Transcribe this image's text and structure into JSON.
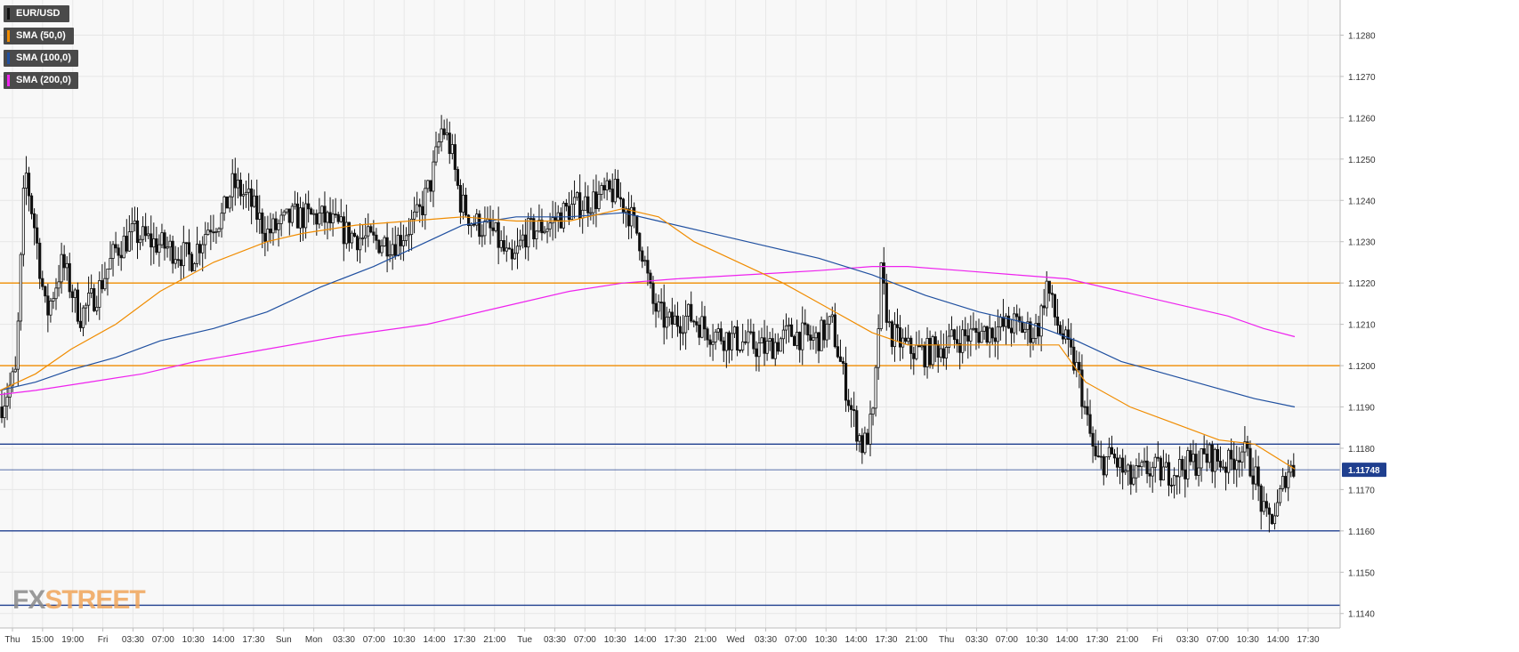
{
  "legend": [
    {
      "label": "EUR/USD",
      "color": "#111111"
    },
    {
      "label": "SMA (50,0)",
      "color": "#f08c00"
    },
    {
      "label": "SMA (100,0)",
      "color": "#2050a0"
    },
    {
      "label": "SMA (200,0)",
      "color": "#ee22ee"
    }
  ],
  "logo": {
    "part1": "FX",
    "part2": "STREET"
  },
  "chart_data": {
    "type": "candlestick",
    "symbol": "EUR/USD",
    "y_ticks": [
      "1.1280",
      "1.1270",
      "1.1260",
      "1.1250",
      "1.1240",
      "1.1230",
      "1.1220",
      "1.1210",
      "1.1200",
      "1.1190",
      "1.1180",
      "1.1170",
      "1.1160",
      "1.1150",
      "1.1140"
    ],
    "ylim": [
      1.11365,
      1.12885
    ],
    "x_ticks": [
      "Thu",
      "15:00",
      "19:00",
      "Fri",
      "03:30",
      "07:00",
      "10:30",
      "14:00",
      "17:30",
      "Sun",
      "Mon",
      "03:30",
      "07:00",
      "10:30",
      "14:00",
      "17:30",
      "21:00",
      "Tue",
      "03:30",
      "07:00",
      "10:30",
      "14:00",
      "17:30",
      "21:00",
      "Wed",
      "03:30",
      "07:00",
      "10:30",
      "14:00",
      "17:30",
      "21:00",
      "Thu",
      "03:30",
      "07:00",
      "10:30",
      "14:00",
      "17:30",
      "21:00",
      "Fri",
      "03:30",
      "07:00",
      "10:30",
      "14:00",
      "17:30"
    ],
    "last_price": "1.11748",
    "last_price_value": 1.11748,
    "levels": [
      {
        "value": 1.122,
        "color": "#f08c00",
        "style": "orange"
      },
      {
        "value": 1.12,
        "color": "#f08c00",
        "style": "orange"
      },
      {
        "value": 1.1181,
        "color": "#1f3f8f",
        "style": "blue"
      },
      {
        "value": 1.116,
        "color": "#1f3f8f",
        "style": "blue"
      },
      {
        "value": 1.1142,
        "color": "#1f3f8f",
        "style": "blue"
      }
    ],
    "price_path": [
      [
        0,
        1.119
      ],
      [
        18,
        1.1198
      ],
      [
        28,
        1.1248
      ],
      [
        40,
        1.1232
      ],
      [
        52,
        1.1212
      ],
      [
        70,
        1.1225
      ],
      [
        90,
        1.1212
      ],
      [
        110,
        1.1218
      ],
      [
        130,
        1.1228
      ],
      [
        150,
        1.1232
      ],
      [
        170,
        1.123
      ],
      [
        195,
        1.1228
      ],
      [
        215,
        1.1226
      ],
      [
        235,
        1.1234
      ],
      [
        250,
        1.1236
      ],
      [
        262,
        1.1244
      ],
      [
        280,
        1.124
      ],
      [
        300,
        1.1232
      ],
      [
        330,
        1.1236
      ],
      [
        360,
        1.1236
      ],
      [
        390,
        1.1232
      ],
      [
        420,
        1.123
      ],
      [
        445,
        1.123
      ],
      [
        470,
        1.1236
      ],
      [
        485,
        1.1245
      ],
      [
        497,
        1.1258
      ],
      [
        507,
        1.1252
      ],
      [
        517,
        1.124
      ],
      [
        530,
        1.1235
      ],
      [
        555,
        1.1232
      ],
      [
        575,
        1.1224
      ],
      [
        590,
        1.1232
      ],
      [
        615,
        1.1234
      ],
      [
        640,
        1.1238
      ],
      [
        665,
        1.124
      ],
      [
        690,
        1.1242
      ],
      [
        705,
        1.1238
      ],
      [
        720,
        1.123
      ],
      [
        733,
        1.1215
      ],
      [
        750,
        1.121
      ],
      [
        775,
        1.1212
      ],
      [
        800,
        1.1208
      ],
      [
        830,
        1.1206
      ],
      [
        860,
        1.1204
      ],
      [
        890,
        1.1208
      ],
      [
        915,
        1.1206
      ],
      [
        935,
        1.121
      ],
      [
        945,
        1.12
      ],
      [
        958,
        1.1188
      ],
      [
        970,
        1.118
      ],
      [
        982,
        1.1188
      ],
      [
        990,
        1.1222
      ],
      [
        1000,
        1.1208
      ],
      [
        1020,
        1.1204
      ],
      [
        1040,
        1.1203
      ],
      [
        1070,
        1.1206
      ],
      [
        1100,
        1.1208
      ],
      [
        1140,
        1.121
      ],
      [
        1160,
        1.1208
      ],
      [
        1168,
        1.121
      ],
      [
        1176,
        1.122
      ],
      [
        1185,
        1.1212
      ],
      [
        1200,
        1.1204
      ],
      [
        1212,
        1.1198
      ],
      [
        1220,
        1.1188
      ],
      [
        1232,
        1.1176
      ],
      [
        1250,
        1.1178
      ],
      [
        1270,
        1.1172
      ],
      [
        1290,
        1.1175
      ],
      [
        1310,
        1.1174
      ],
      [
        1335,
        1.1176
      ],
      [
        1360,
        1.1178
      ],
      [
        1380,
        1.1176
      ],
      [
        1395,
        1.118
      ],
      [
        1410,
        1.1174
      ],
      [
        1422,
        1.1162
      ],
      [
        1435,
        1.1165
      ],
      [
        1446,
        1.1175
      ],
      [
        1455,
        1.1175
      ]
    ],
    "sma50": [
      [
        0,
        1.1194
      ],
      [
        40,
        1.1198
      ],
      [
        80,
        1.1204
      ],
      [
        130,
        1.121
      ],
      [
        180,
        1.1218
      ],
      [
        240,
        1.1225
      ],
      [
        300,
        1.123
      ],
      [
        340,
        1.1232
      ],
      [
        400,
        1.1234
      ],
      [
        460,
        1.1235
      ],
      [
        520,
        1.1236
      ],
      [
        580,
        1.1235
      ],
      [
        640,
        1.1235
      ],
      [
        700,
        1.1238
      ],
      [
        740,
        1.1236
      ],
      [
        780,
        1.123
      ],
      [
        820,
        1.1226
      ],
      [
        880,
        1.122
      ],
      [
        930,
        1.1214
      ],
      [
        980,
        1.1208
      ],
      [
        1020,
        1.1205
      ],
      [
        1080,
        1.1205
      ],
      [
        1140,
        1.1205
      ],
      [
        1190,
        1.1205
      ],
      [
        1220,
        1.1196
      ],
      [
        1270,
        1.119
      ],
      [
        1320,
        1.1186
      ],
      [
        1370,
        1.1182
      ],
      [
        1410,
        1.1181
      ],
      [
        1455,
        1.1175
      ]
    ],
    "sma100": [
      [
        0,
        1.1194
      ],
      [
        40,
        1.1196
      ],
      [
        80,
        1.1199
      ],
      [
        130,
        1.1202
      ],
      [
        180,
        1.1206
      ],
      [
        240,
        1.1209
      ],
      [
        300,
        1.1213
      ],
      [
        360,
        1.1219
      ],
      [
        420,
        1.1224
      ],
      [
        480,
        1.123
      ],
      [
        520,
        1.1234
      ],
      [
        580,
        1.1236
      ],
      [
        640,
        1.1236
      ],
      [
        700,
        1.1237
      ],
      [
        740,
        1.1235
      ],
      [
        800,
        1.1232
      ],
      [
        860,
        1.1229
      ],
      [
        920,
        1.1226
      ],
      [
        980,
        1.1222
      ],
      [
        1040,
        1.1217
      ],
      [
        1100,
        1.1213
      ],
      [
        1160,
        1.121
      ],
      [
        1210,
        1.1206
      ],
      [
        1260,
        1.1201
      ],
      [
        1310,
        1.1198
      ],
      [
        1360,
        1.1195
      ],
      [
        1410,
        1.1192
      ],
      [
        1455,
        1.119
      ]
    ],
    "sma200": [
      [
        0,
        1.1193
      ],
      [
        40,
        1.1194
      ],
      [
        100,
        1.1196
      ],
      [
        160,
        1.1198
      ],
      [
        220,
        1.1201
      ],
      [
        300,
        1.1204
      ],
      [
        380,
        1.1207
      ],
      [
        480,
        1.121
      ],
      [
        560,
        1.1214
      ],
      [
        640,
        1.1218
      ],
      [
        700,
        1.122
      ],
      [
        760,
        1.1221
      ],
      [
        840,
        1.1222
      ],
      [
        920,
        1.1223
      ],
      [
        980,
        1.1224
      ],
      [
        1020,
        1.1224
      ],
      [
        1080,
        1.1223
      ],
      [
        1140,
        1.1222
      ],
      [
        1200,
        1.1221
      ],
      [
        1260,
        1.1218
      ],
      [
        1320,
        1.1215
      ],
      [
        1380,
        1.1212
      ],
      [
        1420,
        1.1209
      ],
      [
        1455,
        1.1207
      ]
    ],
    "grid": true,
    "legend_position": "top-left"
  }
}
